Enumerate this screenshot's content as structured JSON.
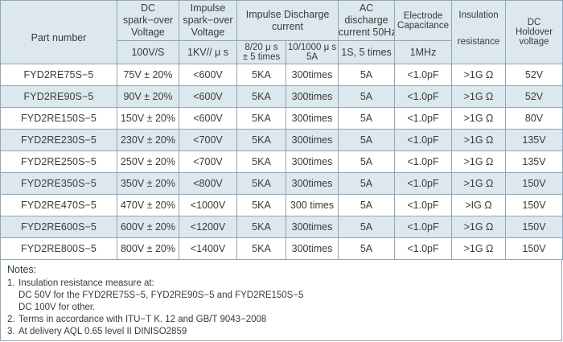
{
  "header": {
    "part_number": "Part number",
    "dc_spark_line1": "DC",
    "dc_spark_line2": "spark−over",
    "dc_spark_line3": "Voltage",
    "dc_spark_unit": "100V/S",
    "impulse_spark_line1": "Impulse",
    "impulse_spark_line2": "spark−over",
    "impulse_spark_line3": "Voltage",
    "impulse_spark_unit": "1KV// μ s",
    "impulse_discharge_line1": "Impulse Discharge",
    "impulse_discharge_line2": "current",
    "impulse_sub1_line1": "8/20 μ s",
    "impulse_sub1_line2": "± 5 times",
    "impulse_sub2_line1": "10/1000 μ s",
    "impulse_sub2_line2": "5A",
    "ac_line1": "AC",
    "ac_line2": "discharge",
    "ac_line3": "current 50Hz",
    "ac_unit": "1S, 5 times",
    "electrode_line1": "Electrode",
    "electrode_line2": "Capacitance",
    "electrode_unit": "1MHz",
    "insulation_line1": "Insulation",
    "insulation_line2": "resistance",
    "dc_holdover_line1": "DC",
    "dc_holdover_line2": "Holdover",
    "dc_holdover_line3": "voltage"
  },
  "rows": [
    {
      "part": "FYD2RE75S−5",
      "dc": "75V ± 20%",
      "imp": "<600V",
      "d820": "5KA",
      "d1000": "300times",
      "ac": "5A",
      "cap": "<1.0pF",
      "ins": ">1G Ω",
      "hold": "52V"
    },
    {
      "part": "FYD2RE90S−5",
      "dc": "90V ± 20%",
      "imp": "<600V",
      "d820": "5KA",
      "d1000": "300times",
      "ac": "5A",
      "cap": "<1.0pF",
      "ins": ">1G Ω",
      "hold": "52V"
    },
    {
      "part": "FYD2RE150S−5",
      "dc": "150V ± 20%",
      "imp": "<600V",
      "d820": "5KA",
      "d1000": "300times",
      "ac": "5A",
      "cap": "<1.0pF",
      "ins": ">1G Ω",
      "hold": "80V"
    },
    {
      "part": "FYD2RE230S−5",
      "dc": "230V ± 20%",
      "imp": "<700V",
      "d820": "5KA",
      "d1000": "300times",
      "ac": "5A",
      "cap": "<1.0pF",
      "ins": ">1G Ω",
      "hold": "135V"
    },
    {
      "part": "FYD2RE250S−5",
      "dc": "250V ± 20%",
      "imp": "<700V",
      "d820": "5KA",
      "d1000": "300times",
      "ac": "5A",
      "cap": "<1.0pF",
      "ins": ">1G Ω",
      "hold": "135V"
    },
    {
      "part": "FYD2RE350S−5",
      "dc": "350V ± 20%",
      "imp": "<800V",
      "d820": "5KA",
      "d1000": "300times",
      "ac": "5A",
      "cap": "<1.0pF",
      "ins": ">1G Ω",
      "hold": "150V"
    },
    {
      "part": "FYD2RE470S−5",
      "dc": "470V ± 20%",
      "imp": "<1000V",
      "d820": "5KA",
      "d1000": "300 times",
      "ac": "5A",
      "cap": "<1.0pF",
      "ins": ">IG Ω",
      "hold": "150V"
    },
    {
      "part": "FYD2RE600S−5",
      "dc": "600V ± 20%",
      "imp": "<1200V",
      "d820": "5KA",
      "d1000": "300times",
      "ac": "5A",
      "cap": "<1.0pF",
      "ins": ">1G Ω",
      "hold": "150V"
    },
    {
      "part": "FYD2RE800S−5",
      "dc": "800V ± 20%",
      "imp": "<1400V",
      "d820": "5KA",
      "d1000": "300times",
      "ac": "5A",
      "cap": "<1.0pF",
      "ins": ">1G Ω",
      "hold": "150V"
    }
  ],
  "notes": {
    "title": "Notes:",
    "item1_num": "1.",
    "item1_text": "Insulation resistance measure at:",
    "item1_sub1": "DC 50V for the FYD2RE75S−5, FYD2RE90S−5 and FYD2RE150S−5",
    "item1_sub2": "DC 100V for other.",
    "item2_num": "2.",
    "item2_text": "Terms in accordance with ITU−T K. 12 and GB/T 9043−2008",
    "item3_num": "3.",
    "item3_text": "At delivery AQL 0.65 level II DINISO2859"
  },
  "colors": {
    "header_bg": "#dce8ee",
    "alt_row_bg": "#dce8ee",
    "border": "#8fa6b3",
    "text": "#3a3a3a"
  }
}
